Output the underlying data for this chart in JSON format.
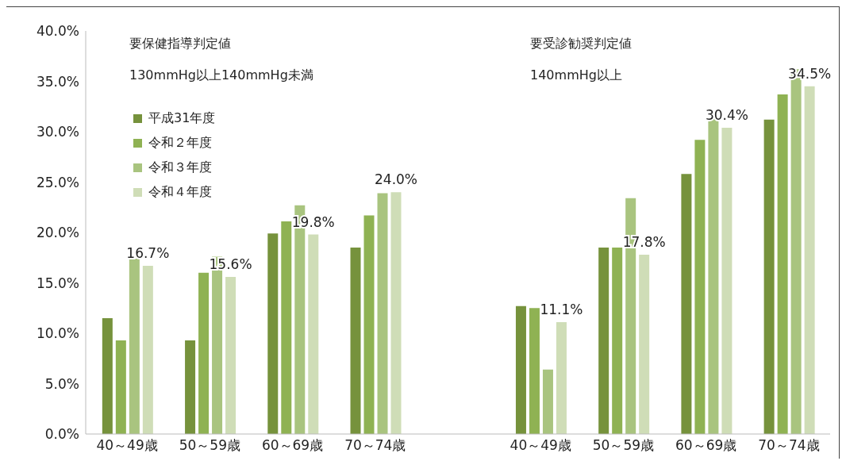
{
  "chart_data": {
    "type": "bar",
    "categories": [
      "40～49歳",
      "50～59歳",
      "60～69歳",
      "70～74歳",
      null,
      "40～49歳",
      "50～59歳",
      "60～69歳",
      "70～74歳"
    ],
    "series": [
      {
        "name": "平成31年度",
        "color": "#76923c",
        "values": [
          11.5,
          9.3,
          19.9,
          18.5,
          null,
          12.7,
          18.5,
          25.8,
          31.2
        ]
      },
      {
        "name": "令和２年度",
        "color": "#8fb253",
        "values": [
          9.3,
          16.0,
          21.1,
          21.7,
          null,
          12.5,
          18.5,
          29.2,
          33.7
        ]
      },
      {
        "name": "令和３年度",
        "color": "#a9c47f",
        "values": [
          17.4,
          17.6,
          22.7,
          23.9,
          null,
          6.4,
          23.4,
          31.3,
          36.2
        ]
      },
      {
        "name": "令和４年度",
        "color": "#cfddb7",
        "values": [
          16.7,
          15.6,
          19.8,
          24.0,
          null,
          11.1,
          17.8,
          30.4,
          34.5
        ],
        "value_labels": [
          "16.7%",
          "15.6%",
          "19.8%",
          "24.0%",
          null,
          "11.1%",
          "17.8%",
          "30.4%",
          "34.5%"
        ]
      }
    ],
    "ylim": [
      0,
      40
    ],
    "yticks": [
      {
        "value": 0,
        "label": "0.0%"
      },
      {
        "value": 5,
        "label": "5.0%"
      },
      {
        "value": 10,
        "label": "10.0%"
      },
      {
        "value": 15,
        "label": "15.0%"
      },
      {
        "value": 20,
        "label": "20.0%"
      },
      {
        "value": 25,
        "label": "25.0%"
      },
      {
        "value": 30,
        "label": "30.0%"
      },
      {
        "value": 35,
        "label": "35.0%"
      },
      {
        "value": 40,
        "label": "40.0%"
      }
    ],
    "grid": false,
    "legend": "top left",
    "annotations": [
      "要保健指導判定値",
      "130mmHg以上140mmHg未満",
      "要受診勧奨判定値",
      "140mmHg以上"
    ]
  }
}
